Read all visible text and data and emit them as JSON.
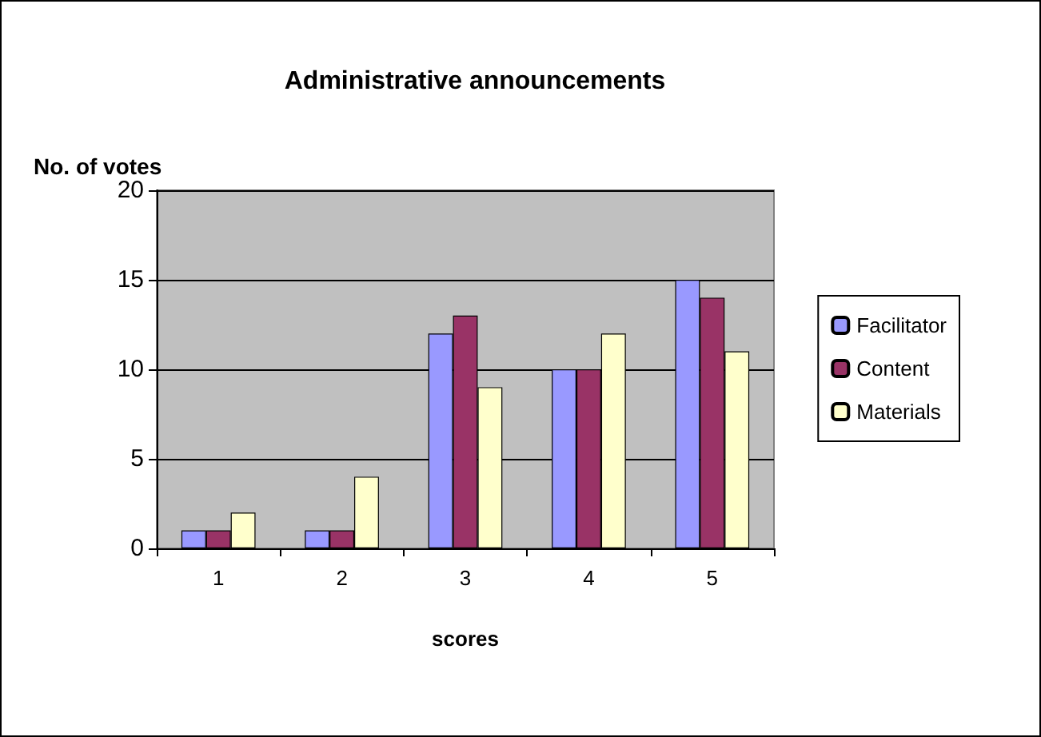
{
  "chart_data": {
    "type": "bar",
    "title": "Administrative announcements",
    "xlabel": "scores",
    "ylabel": "No. of votes",
    "categories": [
      "1",
      "2",
      "3",
      "4",
      "5"
    ],
    "series": [
      {
        "name": "Facilitator",
        "color": "#9999ff",
        "values": [
          1,
          1,
          12,
          10,
          15
        ]
      },
      {
        "name": "Content",
        "color": "#993366",
        "values": [
          1,
          1,
          13,
          10,
          14
        ]
      },
      {
        "name": "Materials",
        "color": "#ffffcc",
        "values": [
          2,
          4,
          9,
          12,
          11
        ]
      }
    ],
    "ylim": [
      0,
      20
    ],
    "yticks": [
      0,
      5,
      10,
      15,
      20
    ],
    "grid": "y",
    "legend": "right"
  }
}
